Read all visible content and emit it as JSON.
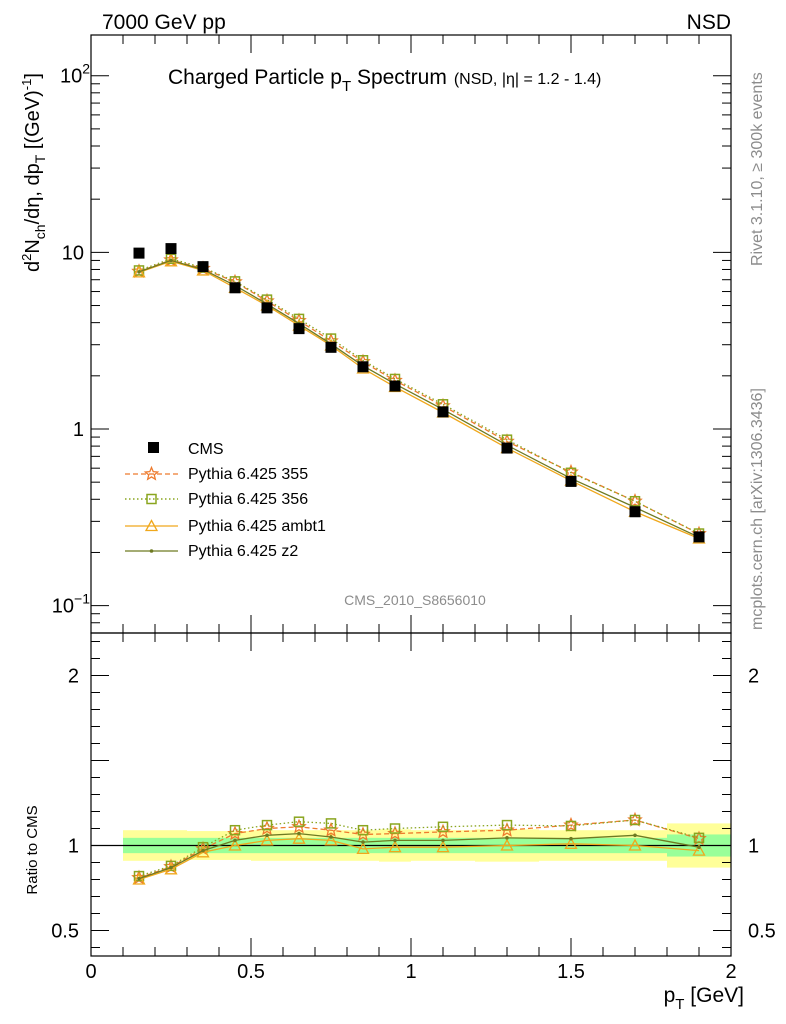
{
  "header": {
    "left": "7000 GeV pp",
    "right": "NSD"
  },
  "side_labels": {
    "rivet": "Rivet 3.1.10, ≥ 300k events",
    "mcplots": "mcplots.cern.ch [arXiv:1306.3436]"
  },
  "chart_data": [
    {
      "type": "line",
      "title": {
        "main_a": "Charged Particle p",
        "main_sub": "T",
        "main_b": " Spectrum",
        "extra": "(NSD, |η| = 1.2 - 1.4)"
      },
      "analysis_id": "CMS_2010_S8656010",
      "ylabel": "d²Nₕₕ/dη, dpₜ [(GeV)⁻¹]",
      "ylabel_parts": {
        "a": "d",
        "sup1": "2",
        "b": "N",
        "sub1": "ch",
        "c": "/dη, dp",
        "sub2": "T",
        "d": " [(GeV)",
        "sup2": "-1",
        "e": "]"
      },
      "xlim": [
        0,
        2
      ],
      "ylim": [
        0.07,
        170
      ],
      "y_scale": "log",
      "y_ticks": [
        {
          "value": 0.1,
          "base": "10",
          "exp": "−1"
        },
        {
          "value": 1,
          "base": "1",
          "exp": ""
        },
        {
          "value": 10,
          "base": "10",
          "exp": ""
        },
        {
          "value": 100,
          "base": "10",
          "exp": "2"
        }
      ],
      "x": [
        0.15,
        0.25,
        0.35,
        0.45,
        0.55,
        0.65,
        0.75,
        0.85,
        0.95,
        1.1,
        1.3,
        1.5,
        1.7,
        1.9
      ],
      "data": {
        "name": "CMS",
        "color": "#000000",
        "y": [
          9.9,
          10.5,
          8.3,
          6.3,
          4.85,
          3.7,
          2.9,
          2.25,
          1.75,
          1.25,
          0.78,
          0.505,
          0.34,
          0.245
        ]
      },
      "series": [
        {
          "name": "Pythia 6.425 355",
          "color": "#ee7b2e",
          "style": "dashed",
          "marker": "star",
          "y": [
            7.8,
            9.05,
            8.1,
            6.8,
            5.3,
            4.1,
            3.15,
            2.4,
            1.88,
            1.35,
            0.85,
            0.57,
            0.39,
            0.255
          ]
        },
        {
          "name": "Pythia 6.425 356",
          "color": "#8aa51f",
          "style": "dotted",
          "marker": "open-square",
          "y": [
            7.9,
            9.2,
            8.2,
            6.85,
            5.4,
            4.2,
            3.25,
            2.45,
            1.92,
            1.38,
            0.87,
            0.565,
            0.39,
            0.256
          ]
        },
        {
          "name": "Pythia 6.425 ambt1",
          "color": "#f0a81c",
          "style": "solid",
          "marker": "open-triangle",
          "y": [
            7.7,
            8.9,
            7.9,
            6.3,
            5.0,
            3.85,
            2.97,
            2.2,
            1.73,
            1.24,
            0.78,
            0.51,
            0.34,
            0.24
          ]
        },
        {
          "name": "Pythia 6.425 z2",
          "color": "#6e7a22",
          "style": "solid",
          "marker": "dot",
          "y": [
            7.75,
            9.0,
            8.0,
            6.5,
            5.1,
            3.95,
            3.03,
            2.28,
            1.8,
            1.29,
            0.81,
            0.525,
            0.36,
            0.244
          ]
        }
      ]
    },
    {
      "type": "line",
      "ylabel": "Ratio to CMS",
      "xlabel_a": "p",
      "xlabel_sub": "T",
      "xlabel_b": " [GeV]",
      "xlim": [
        0,
        2
      ],
      "ylim": [
        0.35,
        2.25
      ],
      "x_ticks": [
        "0",
        "0.5",
        "1",
        "1.5",
        "2"
      ],
      "y_ticks_left": [
        "0.5",
        "1",
        "2"
      ],
      "y_ticks_right": [
        "0.5",
        "1",
        "2"
      ],
      "x": [
        0.15,
        0.25,
        0.35,
        0.45,
        0.55,
        0.65,
        0.75,
        0.85,
        0.95,
        1.1,
        1.3,
        1.5,
        1.7,
        1.9
      ],
      "bins": [
        [
          0.1,
          0.2
        ],
        [
          0.2,
          0.3
        ],
        [
          0.3,
          0.4
        ],
        [
          0.4,
          0.5
        ],
        [
          0.5,
          0.6
        ],
        [
          0.6,
          0.7
        ],
        [
          0.7,
          0.8
        ],
        [
          0.8,
          0.9
        ],
        [
          0.9,
          1.0
        ],
        [
          1.0,
          1.2
        ],
        [
          1.2,
          1.4
        ],
        [
          1.4,
          1.6
        ],
        [
          1.6,
          1.8
        ],
        [
          1.8,
          2.0
        ]
      ],
      "band_outer": [
        0.09,
        0.09,
        0.085,
        0.085,
        0.09,
        0.09,
        0.09,
        0.09,
        0.095,
        0.09,
        0.095,
        0.09,
        0.09,
        0.13
      ],
      "band_inner": [
        0.045,
        0.045,
        0.045,
        0.045,
        0.045,
        0.045,
        0.045,
        0.045,
        0.045,
        0.045,
        0.045,
        0.045,
        0.045,
        0.065
      ],
      "band_colors": {
        "outer": "#ffff99",
        "inner": "#99ff99"
      },
      "series": [
        {
          "name": "Pythia 6.425 355",
          "color": "#ee7b2e",
          "style": "dashed",
          "marker": "star",
          "y": [
            0.81,
            0.875,
            0.98,
            1.07,
            1.1,
            1.11,
            1.09,
            1.065,
            1.07,
            1.08,
            1.09,
            1.12,
            1.15,
            1.04
          ]
        },
        {
          "name": "Pythia 6.425 356",
          "color": "#8aa51f",
          "style": "dotted",
          "marker": "open-square",
          "y": [
            0.82,
            0.88,
            0.99,
            1.09,
            1.12,
            1.14,
            1.13,
            1.09,
            1.1,
            1.11,
            1.12,
            1.115,
            1.15,
            1.045
          ]
        },
        {
          "name": "Pythia 6.425 ambt1",
          "color": "#f0a81c",
          "style": "solid",
          "marker": "open-triangle",
          "y": [
            0.8,
            0.86,
            0.96,
            1.0,
            1.03,
            1.04,
            1.03,
            0.98,
            0.99,
            0.99,
            1.0,
            1.01,
            1.0,
            0.97
          ]
        },
        {
          "name": "Pythia 6.425 z2",
          "color": "#6e7a22",
          "style": "solid",
          "marker": "dot",
          "y": [
            0.805,
            0.87,
            0.97,
            1.03,
            1.06,
            1.07,
            1.05,
            1.02,
            1.03,
            1.03,
            1.045,
            1.04,
            1.06,
            0.99
          ]
        }
      ]
    }
  ]
}
